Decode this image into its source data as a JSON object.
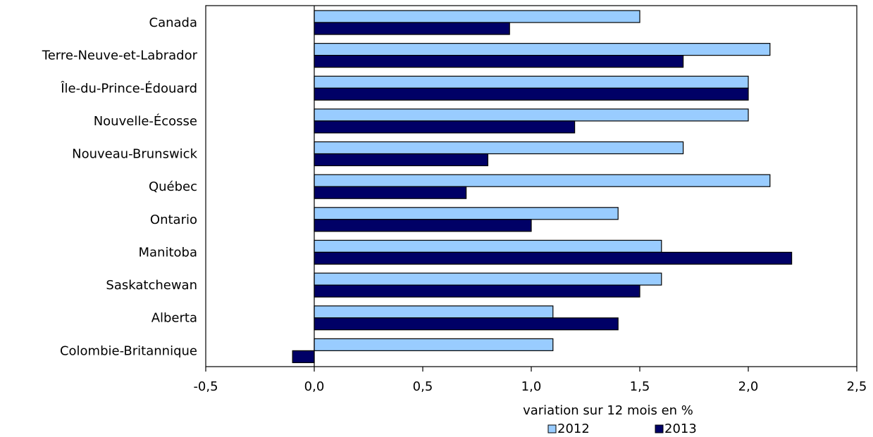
{
  "chart_data": {
    "type": "bar",
    "orientation": "horizontal",
    "categories": [
      "Canada",
      "Terre-Neuve-et-Labrador",
      "Île-du-Prince-Édouard",
      "Nouvelle-Écosse",
      "Nouveau-Brunswick",
      "Québec",
      "Ontario",
      "Manitoba",
      "Saskatchewan",
      "Alberta",
      "Colombie-Britannique"
    ],
    "series": [
      {
        "name": "2012",
        "color": "#99ccff",
        "values": [
          1.5,
          2.1,
          2.0,
          2.0,
          1.7,
          2.1,
          1.4,
          1.6,
          1.6,
          1.1,
          1.1
        ]
      },
      {
        "name": "2013",
        "color": "#000066",
        "values": [
          0.9,
          1.7,
          2.0,
          1.2,
          0.8,
          0.7,
          1.0,
          2.2,
          1.5,
          1.4,
          -0.1
        ]
      }
    ],
    "xlabel": "variation sur 12 mois  en %",
    "xlim": [
      -0.5,
      2.5
    ],
    "xticks": [
      -0.5,
      0.0,
      0.5,
      1.0,
      1.5,
      2.0,
      2.5
    ],
    "xtick_labels": [
      "-0,5",
      "0,0",
      "0,5",
      "1,0",
      "1,5",
      "2,0",
      "2,5"
    ],
    "grid": false,
    "legend_position": "bottom"
  }
}
